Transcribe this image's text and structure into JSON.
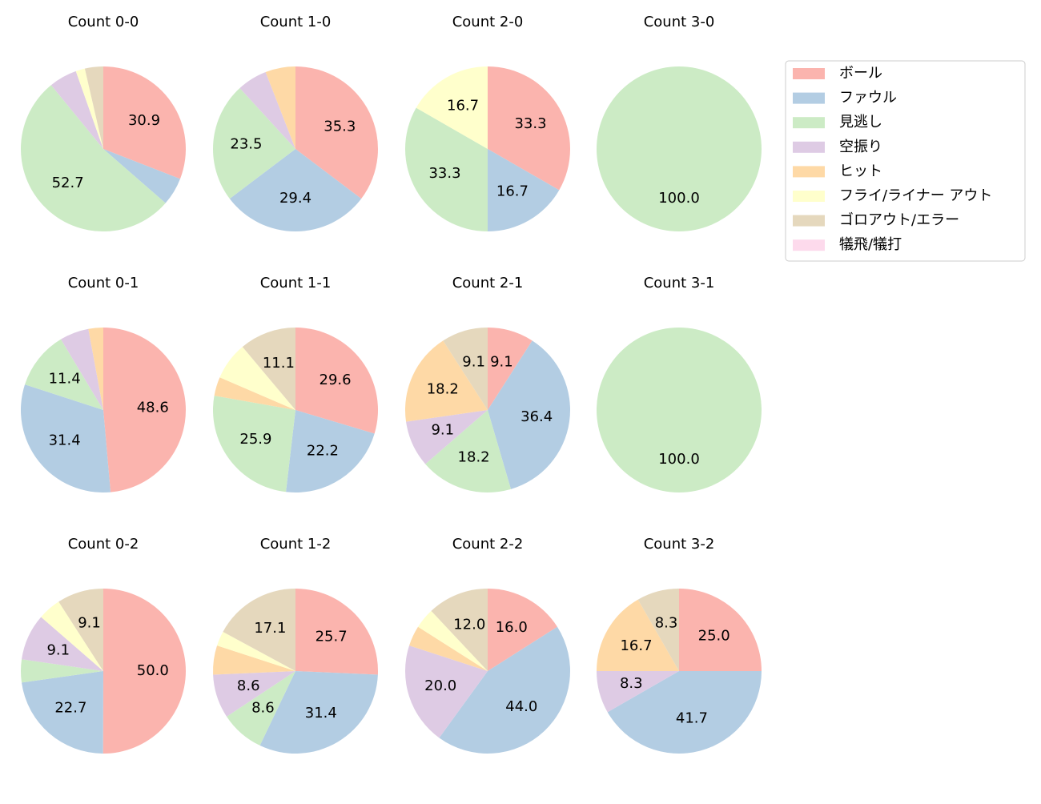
{
  "legend": {
    "names": [
      "ボール",
      "ファウル",
      "見逃し",
      "空振り",
      "ヒット",
      "フライ/ライナー アウト",
      "ゴロアウト/エラー",
      "犠飛/犠打"
    ],
    "colors": [
      "#fbb4ae",
      "#b3cde3",
      "#ccebc5",
      "#decbe4",
      "#fed9a6",
      "#ffffcc",
      "#e5d8bd",
      "#fddaec"
    ]
  },
  "chart_data": [
    {
      "type": "pie",
      "title": "Count 0-0",
      "values": [
        30.9,
        5.5,
        52.7,
        5.5,
        0,
        1.8,
        3.6,
        0
      ],
      "value_labels": [
        "30.9",
        null,
        "52.7",
        null,
        null,
        null,
        null,
        null
      ]
    },
    {
      "type": "pie",
      "title": "Count 1-0",
      "values": [
        35.3,
        29.4,
        23.5,
        5.9,
        5.9,
        0,
        0,
        0
      ],
      "value_labels": [
        "35.3",
        "29.4",
        "23.5",
        null,
        null,
        null,
        null,
        null
      ]
    },
    {
      "type": "pie",
      "title": "Count 2-0",
      "values": [
        33.3,
        16.7,
        33.3,
        0,
        0,
        16.7,
        0,
        0
      ],
      "value_labels": [
        "33.3",
        "16.7",
        "33.3",
        null,
        null,
        "16.7",
        null,
        null
      ]
    },
    {
      "type": "pie",
      "title": "Count 3-0",
      "values": [
        0,
        0,
        100,
        0,
        0,
        0,
        0,
        0
      ],
      "value_labels": [
        null,
        null,
        "100.0",
        null,
        null,
        null,
        null,
        null
      ]
    },
    {
      "type": "pie",
      "title": "Count 0-1",
      "values": [
        48.6,
        31.4,
        11.4,
        5.7,
        2.9,
        0,
        0,
        0
      ],
      "value_labels": [
        "48.6",
        "31.4",
        "11.4",
        null,
        null,
        null,
        null,
        null
      ]
    },
    {
      "type": "pie",
      "title": "Count 1-1",
      "values": [
        29.6,
        22.2,
        25.9,
        0,
        3.7,
        7.4,
        11.1,
        0
      ],
      "value_labels": [
        "29.6",
        "22.2",
        "25.9",
        null,
        null,
        null,
        "11.1",
        null
      ]
    },
    {
      "type": "pie",
      "title": "Count 2-1",
      "values": [
        9.1,
        36.4,
        18.2,
        9.1,
        18.2,
        0,
        9.1,
        0
      ],
      "value_labels": [
        "9.1",
        "36.4",
        "18.2",
        "9.1",
        "18.2",
        null,
        "9.1",
        null
      ]
    },
    {
      "type": "pie",
      "title": "Count 3-1",
      "values": [
        0,
        0,
        100,
        0,
        0,
        0,
        0,
        0
      ],
      "value_labels": [
        null,
        null,
        "100.0",
        null,
        null,
        null,
        null,
        null
      ]
    },
    {
      "type": "pie",
      "title": "Count 0-2",
      "values": [
        50.0,
        22.7,
        4.5,
        9.1,
        0,
        4.5,
        9.1,
        0
      ],
      "value_labels": [
        "50.0",
        "22.7",
        null,
        "9.1",
        null,
        null,
        "9.1",
        null
      ]
    },
    {
      "type": "pie",
      "title": "Count 1-2",
      "values": [
        25.7,
        31.4,
        8.6,
        8.6,
        5.7,
        2.9,
        17.1,
        0
      ],
      "value_labels": [
        "25.7",
        "31.4",
        "8.6",
        "8.6",
        null,
        null,
        "17.1",
        null
      ]
    },
    {
      "type": "pie",
      "title": "Count 2-2",
      "values": [
        16.0,
        44.0,
        0,
        20.0,
        4.0,
        4.0,
        12.0,
        0
      ],
      "value_labels": [
        "16.0",
        "44.0",
        null,
        "20.0",
        null,
        null,
        "12.0",
        null
      ]
    },
    {
      "type": "pie",
      "title": "Count 3-2",
      "values": [
        25.0,
        41.7,
        0,
        8.3,
        16.7,
        0,
        8.3,
        0
      ],
      "value_labels": [
        "25.0",
        "41.7",
        null,
        "8.3",
        "16.7",
        null,
        "8.3",
        null
      ]
    }
  ]
}
